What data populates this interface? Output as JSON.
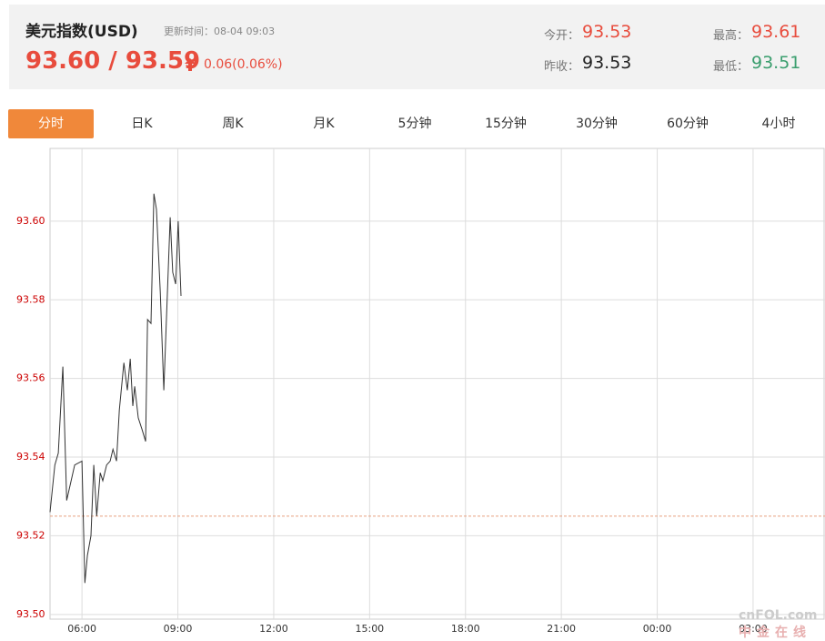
{
  "header": {
    "title": "美元指数(USD)",
    "update_time": "更新时间：08-04 09:03",
    "price": "93.60 / 93.59",
    "change": "0.06(0.06%)",
    "stats": [
      {
        "label": "今开：",
        "value": "93.53",
        "color": "#e84c3d"
      },
      {
        "label": "昨收：",
        "value": "93.53",
        "color": "#222222"
      },
      {
        "label": "最高：",
        "value": "93.61",
        "color": "#e84c3d"
      },
      {
        "label": "最低：",
        "value": "93.51",
        "color": "#3a9e6e"
      }
    ]
  },
  "tabs": [
    "分时",
    "日K",
    "周K",
    "月K",
    "5分钟",
    "15分钟",
    "30分钟",
    "60分钟",
    "4小时"
  ],
  "watermark": {
    "brand": "cnFOL.com",
    "name": "中金在线"
  },
  "chart_data": {
    "type": "line",
    "color": "#333333",
    "grid": true,
    "reference_line": 93.525,
    "reference_color": "#e8a080",
    "xlim": [
      5,
      29.25
    ],
    "ylim": [
      93.4988,
      93.6185
    ],
    "xticks": [
      {
        "value": 6,
        "label": "06:00"
      },
      {
        "value": 9,
        "label": "09:00"
      },
      {
        "value": 12,
        "label": "12:00"
      },
      {
        "value": 15,
        "label": "15:00"
      },
      {
        "value": 18,
        "label": "18:00"
      },
      {
        "value": 21,
        "label": "21:00"
      },
      {
        "value": 24,
        "label": "00:00"
      },
      {
        "value": 27,
        "label": "03:00"
      }
    ],
    "yticks": [
      {
        "value": 93.5,
        "label": "93.50"
      },
      93.52,
      93.54,
      93.56,
      93.58,
      {
        "value": 93.6,
        "label": "93.60"
      }
    ],
    "x": [
      5.0,
      5.15,
      5.26,
      5.4,
      5.52,
      5.66,
      5.77,
      6.0,
      6.09,
      6.17,
      6.28,
      6.37,
      6.46,
      6.57,
      6.65,
      6.77,
      6.88,
      6.97,
      7.08,
      7.17,
      7.31,
      7.42,
      7.51,
      7.59,
      7.65,
      7.76,
      7.88,
      7.99,
      8.05,
      8.16,
      8.25,
      8.33,
      8.45,
      8.56,
      8.76,
      8.84,
      8.93,
      9.01,
      9.1
    ],
    "values": [
      93.526,
      93.538,
      93.541,
      93.563,
      93.529,
      93.534,
      93.538,
      93.539,
      93.508,
      93.515,
      93.52,
      93.538,
      93.525,
      93.536,
      93.534,
      93.538,
      93.539,
      93.542,
      93.539,
      93.552,
      93.564,
      93.557,
      93.565,
      93.553,
      93.558,
      93.55,
      93.547,
      93.544,
      93.575,
      93.574,
      93.607,
      93.603,
      93.582,
      93.557,
      93.601,
      93.587,
      93.584,
      93.6,
      93.581
    ]
  }
}
